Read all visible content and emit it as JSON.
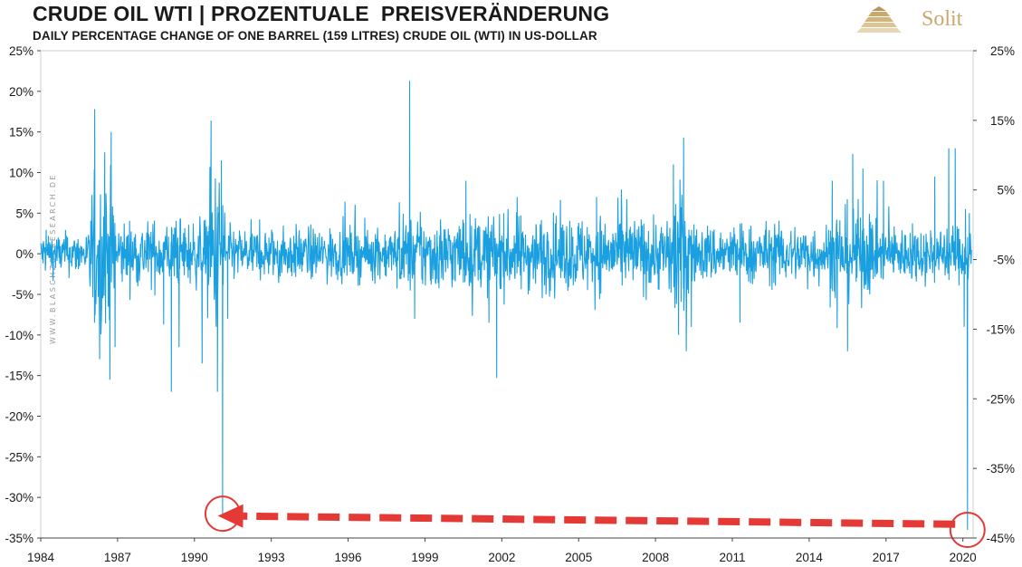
{
  "header": {
    "title": "CRUDE OIL WTI | PROZENTUALE  PREISVERÄNDERUNG",
    "subtitle": "DAILY PERCENTAGE CHANGE OF ONE BARREL (159 LITRES) CRUDE OIL (WTI) IN US-DOLLAR"
  },
  "logo": {
    "text": "Solit"
  },
  "watermark": "WWW.BLASCHZOKRESEARCH.DE",
  "colors": {
    "series": "#1a9fe0",
    "annotation": "#e53935",
    "logo": "#c9a86c"
  },
  "chart_data": {
    "type": "line",
    "title": "CRUDE OIL WTI | PROZENTUALE  PREISVERÄNDERUNG",
    "subtitle": "DAILY PERCENTAGE CHANGE OF ONE BARREL (159 LITRES) CRUDE OIL (WTI) IN US-DOLLAR",
    "xlim": [
      1984,
      2020.4
    ],
    "x_ticks": [
      1984,
      1987,
      1990,
      1993,
      1996,
      1999,
      2002,
      2005,
      2008,
      2011,
      2014,
      2017,
      2020
    ],
    "x_tick_labels": [
      "1984",
      "1987",
      "1990",
      "1993",
      "1996",
      "1999",
      "2002",
      "2005",
      "2008",
      "2011",
      "2014",
      "2017",
      "2020"
    ],
    "ylim_left": [
      -35,
      25
    ],
    "y_ticks_left": [
      25,
      20,
      15,
      10,
      5,
      0,
      -5,
      -10,
      -15,
      -20,
      -25,
      -30,
      -35
    ],
    "y_tick_labels_left": [
      "25%",
      "20%",
      "15%",
      "10%",
      "5%",
      "0%",
      "-5%",
      "-10%",
      "-15%",
      "-20%",
      "-25%",
      "-30%",
      "-35%"
    ],
    "ylim_right": [
      -45,
      25
    ],
    "y_ticks_right": [
      25,
      15,
      5,
      -5,
      -15,
      -25,
      -35,
      -45
    ],
    "y_tick_labels_right": [
      "25%",
      "15%",
      "5%",
      "-5%",
      "-15%",
      "-25%",
      "-35%",
      "-45%"
    ],
    "grid": false,
    "series_axis": "left",
    "volatility_regimes": [
      {
        "from": 1984.0,
        "to": 1985.9,
        "amplitude": 1.3
      },
      {
        "from": 1985.9,
        "to": 1986.9,
        "amplitude": 4.5
      },
      {
        "from": 1986.9,
        "to": 1990.5,
        "amplitude": 2.0
      },
      {
        "from": 1990.5,
        "to": 1991.2,
        "amplitude": 5.0
      },
      {
        "from": 1991.2,
        "to": 1997.9,
        "amplitude": 1.6
      },
      {
        "from": 1997.9,
        "to": 2008.6,
        "amplitude": 2.3
      },
      {
        "from": 2008.6,
        "to": 2009.4,
        "amplitude": 4.0
      },
      {
        "from": 2009.4,
        "to": 2014.8,
        "amplitude": 1.8
      },
      {
        "from": 2014.8,
        "to": 2016.5,
        "amplitude": 2.8
      },
      {
        "from": 2016.5,
        "to": 2020.4,
        "amplitude": 1.7
      }
    ],
    "notable_points": [
      {
        "x": 1984.3,
        "y": 2.2
      },
      {
        "x": 1986.1,
        "y": -8.5
      },
      {
        "x": 1986.3,
        "y": -13.0
      },
      {
        "x": 1986.5,
        "y": 12.5
      },
      {
        "x": 1986.7,
        "y": -15.5
      },
      {
        "x": 1986.75,
        "y": 15.0
      },
      {
        "x": 1986.9,
        "y": -11.5
      },
      {
        "x": 1988.8,
        "y": -8.7
      },
      {
        "x": 1989.1,
        "y": -17.0
      },
      {
        "x": 1989.4,
        "y": -11.5
      },
      {
        "x": 1990.3,
        "y": -13.5
      },
      {
        "x": 1990.65,
        "y": 16.4
      },
      {
        "x": 1990.9,
        "y": -17.0
      },
      {
        "x": 1991.05,
        "y": 11.5
      },
      {
        "x": 1991.1,
        "y": -32.0
      },
      {
        "x": 1991.3,
        "y": -8.0
      },
      {
        "x": 1998.4,
        "y": 21.3
      },
      {
        "x": 1998.6,
        "y": -8.0
      },
      {
        "x": 2000.6,
        "y": 9.0
      },
      {
        "x": 2001.5,
        "y": -8.5
      },
      {
        "x": 2001.8,
        "y": -15.3
      },
      {
        "x": 2002.6,
        "y": 7.0
      },
      {
        "x": 2005.7,
        "y": 7.0
      },
      {
        "x": 2008.7,
        "y": 11.0
      },
      {
        "x": 2008.9,
        "y": -10.0
      },
      {
        "x": 2009.1,
        "y": 14.3
      },
      {
        "x": 2009.2,
        "y": -12.0
      },
      {
        "x": 2009.4,
        "y": -9.0
      },
      {
        "x": 2011.3,
        "y": -8.5
      },
      {
        "x": 2014.9,
        "y": 9.0
      },
      {
        "x": 2015.5,
        "y": -12.0
      },
      {
        "x": 2015.7,
        "y": 12.3
      },
      {
        "x": 2016.1,
        "y": 10.5
      },
      {
        "x": 2016.9,
        "y": 9.0
      },
      {
        "x": 2018.9,
        "y": 9.5
      },
      {
        "x": 2019.45,
        "y": 13.0
      },
      {
        "x": 2019.7,
        "y": 13.0
      },
      {
        "x": 2020.05,
        "y": -9.0
      },
      {
        "x": 2020.1,
        "y": 5.5
      },
      {
        "x": 2020.18,
        "y": -34.0
      },
      {
        "x": 2020.25,
        "y": 5.0
      }
    ],
    "annotations": [
      {
        "type": "circle",
        "x": 1991.1,
        "y": -32.0
      },
      {
        "type": "circle",
        "x": 2020.18,
        "y": -34.0
      },
      {
        "type": "dashed-arrow",
        "from": {
          "x": 2019.7,
          "y": -33.3
        },
        "to": {
          "x": 1991.9,
          "y": -32.3
        }
      }
    ]
  }
}
